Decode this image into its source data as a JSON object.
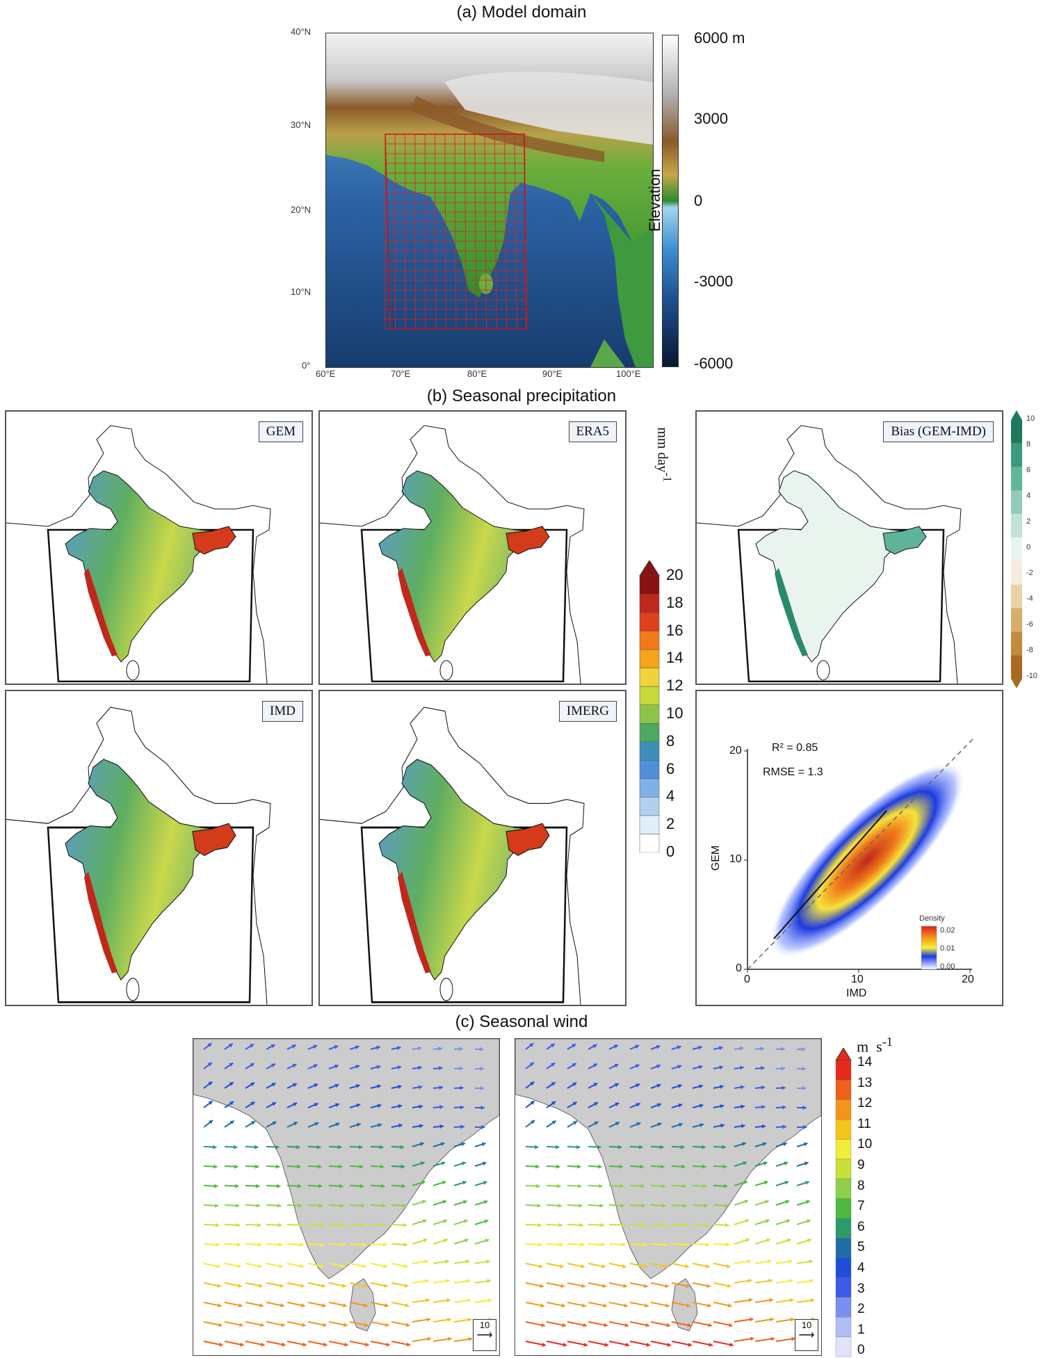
{
  "figure": {
    "panel_a_title": "(a) Model domain",
    "panel_b_title": "(b) Seasonal precipitation",
    "panel_c_title": "(c) Seasonal wind"
  },
  "panel_a": {
    "lat_ticks": [
      "40°N",
      "30°N",
      "20°N",
      "10°N",
      "0°"
    ],
    "lon_ticks": [
      "60°E",
      "70°E",
      "80°E",
      "90°E",
      "100°E"
    ],
    "colorbar_title": "Elevation",
    "colorbar_ticks": [
      "6000 m",
      "3000",
      "0",
      "-3000",
      "-6000"
    ],
    "colors": {
      "high": "#ffffff",
      "mid_land": "#2e8b2e",
      "deep_sea": "#081830",
      "grid": "#d22"
    }
  },
  "panel_b": {
    "map_labels": [
      "GEM",
      "ERA5",
      "IMD",
      "IMERG"
    ],
    "bias_label": "Bias (GEM-IMD)",
    "precip_colorbar_unit": "mm day-1",
    "precip_colorbar_ticks": [
      "20",
      "18",
      "16",
      "14",
      "12",
      "10",
      "8",
      "6",
      "4",
      "2",
      "0"
    ],
    "bias_colorbar_ticks": [
      "10",
      "8",
      "6",
      "4",
      "2",
      "0",
      "-2",
      "-4",
      "-6",
      "-8",
      "-10"
    ],
    "scatter": {
      "r2_text": "R² = 0.85",
      "rmse_text": "RMSE = 1.3",
      "xlabel": "IMD",
      "ylabel": "GEM",
      "x_ticks": [
        "0",
        "10",
        "20"
      ],
      "y_ticks": [
        "0",
        "10",
        "20"
      ],
      "legend_title": "Density",
      "legend_ticks": [
        "0.02",
        "0.01",
        "0.00"
      ]
    }
  },
  "panel_c": {
    "ref_vector_label": "10",
    "colorbar_unit": "m s-1",
    "colorbar_ticks": [
      "14",
      "13",
      "12",
      "11",
      "10",
      "9",
      "8",
      "7",
      "6",
      "5",
      "4",
      "3",
      "2",
      "1",
      "0"
    ]
  }
}
